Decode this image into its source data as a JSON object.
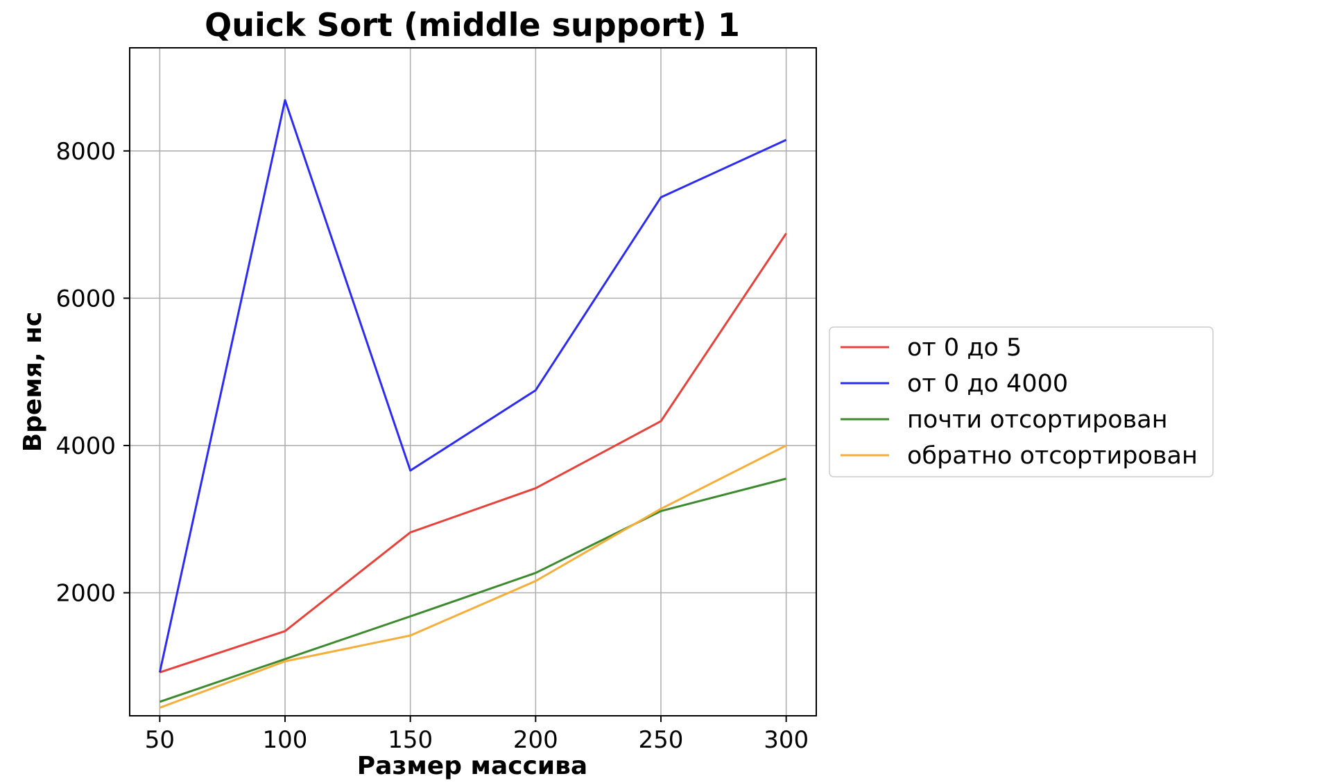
{
  "chart_data": {
    "type": "line",
    "title": "Quick Sort (middle support) 1",
    "xlabel": "Размер массива",
    "ylabel": "Время, нс",
    "x": [
      50,
      100,
      150,
      200,
      250,
      300
    ],
    "xticks": [
      50,
      100,
      150,
      200,
      250,
      300
    ],
    "yticks": [
      2000,
      4000,
      6000,
      8000
    ],
    "xlim": [
      38,
      312
    ],
    "ylim": [
      330,
      9400
    ],
    "grid": true,
    "legend_position": "right, outside plot",
    "series": [
      {
        "name": "от 0 до 5",
        "color": "#e8413a",
        "values": [
          920,
          1480,
          2820,
          3420,
          4330,
          6880
        ]
      },
      {
        "name": "от 0 до 4000",
        "color": "#2b2bf5",
        "values": [
          920,
          8690,
          3660,
          4750,
          7370,
          8150
        ]
      },
      {
        "name": "почти отсортирован",
        "color": "#3d8a2e",
        "values": [
          520,
          1100,
          1680,
          2270,
          3110,
          3550
        ]
      },
      {
        "name": "обратно отсортирован",
        "color": "#f5ae3a",
        "values": [
          440,
          1070,
          1420,
          2160,
          3140,
          4000
        ]
      }
    ]
  }
}
